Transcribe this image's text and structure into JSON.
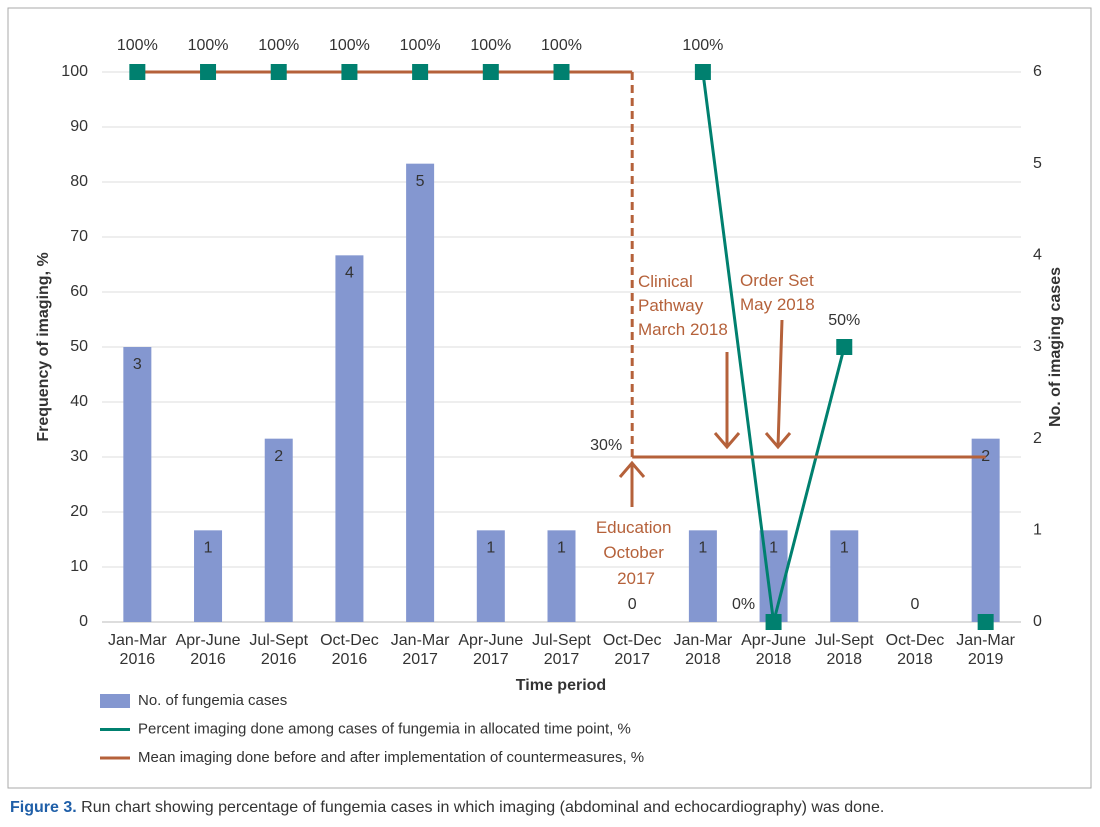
{
  "chart_data": {
    "type": "combo",
    "categories": [
      [
        "Jan-Mar",
        "2016"
      ],
      [
        "Apr-June",
        "2016"
      ],
      [
        "Jul-Sept",
        "2016"
      ],
      [
        "Oct-Dec",
        "2016"
      ],
      [
        "Jan-Mar",
        "2017"
      ],
      [
        "Apr-June",
        "2017"
      ],
      [
        "Jul-Sept",
        "2017"
      ],
      [
        "Oct-Dec",
        "2017"
      ],
      [
        "Jan-Mar",
        "2018"
      ],
      [
        "Apr-June",
        "2018"
      ],
      [
        "Jul-Sept",
        "2018"
      ],
      [
        "Oct-Dec",
        "2018"
      ],
      [
        "Jan-Mar",
        "2019"
      ]
    ],
    "x_label": "Time period",
    "y_label": "Frequency of imaging, %",
    "y2_label": "No. of imaging cases",
    "ylim": [
      0,
      100
    ],
    "yticks": [
      0,
      10,
      20,
      30,
      40,
      50,
      60,
      70,
      80,
      90,
      100
    ],
    "y2lim": [
      0,
      6
    ],
    "y2ticks": [
      0,
      1,
      2,
      3,
      4,
      5,
      6
    ],
    "grid": true,
    "series": [
      {
        "name": "No. of fungemia cases",
        "type": "bar",
        "axis": "y2",
        "color": "#8497d0",
        "values": [
          3,
          1,
          2,
          4,
          5,
          1,
          1,
          0,
          1,
          1,
          1,
          0,
          2
        ]
      },
      {
        "name": "Percent imaging done among cases of fungemia in allocated time point, %",
        "type": "line",
        "marker": "square",
        "color": "#00806f",
        "values": [
          100,
          100,
          100,
          100,
          100,
          100,
          100,
          null,
          100,
          0,
          50,
          null,
          0
        ],
        "value_labels": [
          "100%",
          "100%",
          "100%",
          "100%",
          "100%",
          "100%",
          "100%",
          null,
          "100%",
          "0%",
          "50%",
          null,
          null
        ]
      },
      {
        "name": "Mean imaging done before and after implementation of countermeasures, %",
        "type": "line",
        "step": "before",
        "riser": "dashed",
        "color": "#b5613a",
        "values": [
          100,
          100,
          100,
          100,
          100,
          100,
          100,
          30,
          30,
          30,
          30,
          30,
          30
        ],
        "value_labels": [
          null,
          null,
          null,
          null,
          null,
          null,
          null,
          "30%",
          null,
          null,
          null,
          null,
          null
        ]
      }
    ],
    "annotations": [
      {
        "lines": [
          "Clinical",
          "Pathway",
          "March 2018"
        ]
      },
      {
        "lines": [
          "Order Set",
          "May 2018"
        ]
      },
      {
        "lines": [
          "Education",
          "October",
          "2017"
        ]
      }
    ]
  },
  "caption": {
    "label": "Figure 3.",
    "text": "Run chart showing percentage of fungemia cases in which imaging (abdominal and echocardiography) was done."
  }
}
